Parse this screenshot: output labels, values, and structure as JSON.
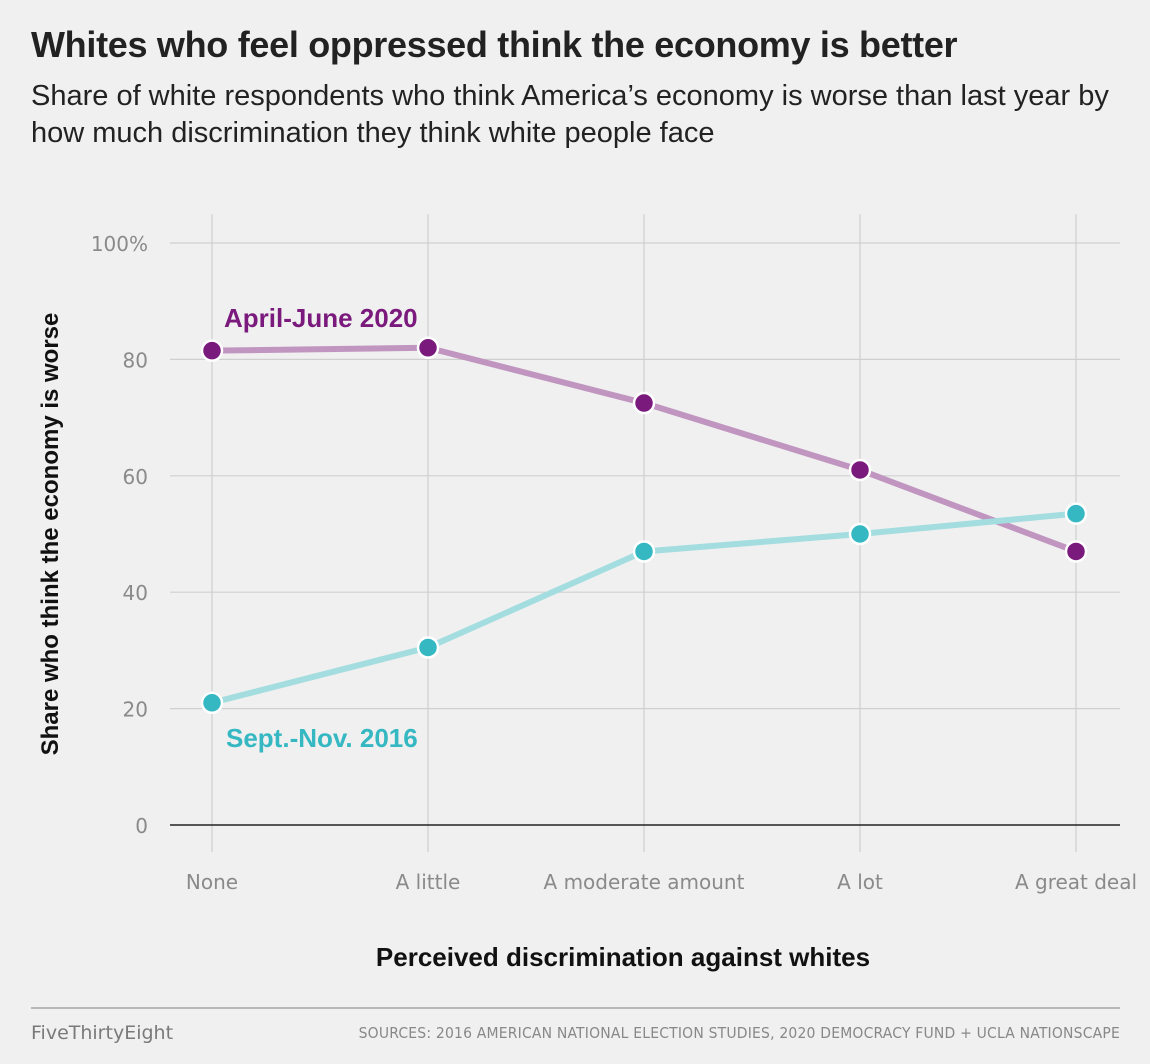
{
  "header": {
    "title": "Whites who feel oppressed think the economy is better",
    "subtitle": "Share of white respondents who think America’s economy is worse than last year by how much discrimination they think white people face"
  },
  "chart_data": {
    "type": "line",
    "categories": [
      "None",
      "A little",
      "A moderate amount",
      "A lot",
      "A great deal"
    ],
    "series": [
      {
        "name": "April-June 2020",
        "color": "#7b1a7d",
        "line_color": "#c095c0",
        "values": [
          81.5,
          82,
          72.5,
          61,
          47
        ]
      },
      {
        "name": "Sept.-Nov. 2016",
        "color": "#35b8c2",
        "line_color": "#a3dde0",
        "values": [
          21,
          30.5,
          47,
          50,
          53.5
        ]
      }
    ],
    "xlabel": "Perceived discrimination against whites",
    "ylabel": "Share who think the economy is worse",
    "ylim": [
      0,
      100
    ],
    "yticks": [
      0,
      20,
      40,
      60,
      80,
      100
    ],
    "ytick_labels": [
      "0",
      "20",
      "40",
      "60",
      "80",
      "100%"
    ],
    "grid": true
  },
  "footer": {
    "credit": "FiveThirtyEight",
    "sources": "SOURCES: 2016 AMERICAN NATIONAL ELECTION STUDIES, 2020 DEMOCRACY FUND + UCLA NATIONSCAPE"
  }
}
